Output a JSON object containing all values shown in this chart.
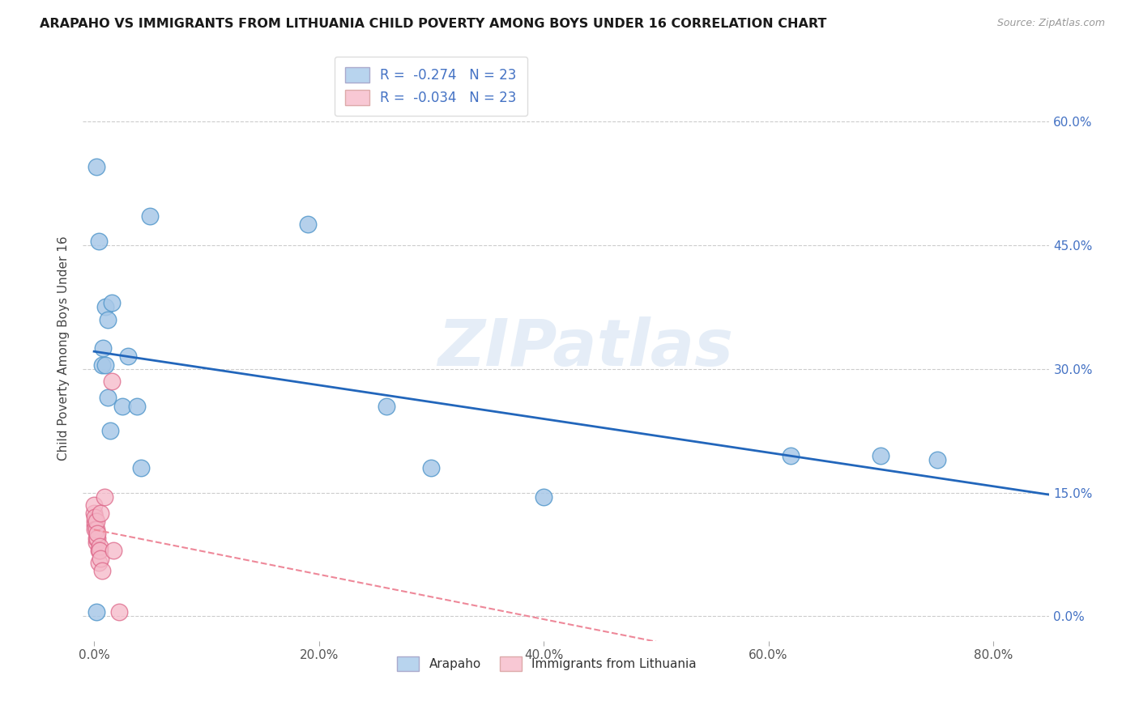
{
  "title": "ARAPAHO VS IMMIGRANTS FROM LITHUANIA CHILD POVERTY AMONG BOYS UNDER 16 CORRELATION CHART",
  "source": "Source: ZipAtlas.com",
  "ylabel": "Child Poverty Among Boys Under 16",
  "xlabel_ticks": [
    "0.0%",
    "20.0%",
    "40.0%",
    "60.0%",
    "80.0%"
  ],
  "xlabel_vals": [
    0.0,
    0.2,
    0.4,
    0.6,
    0.8
  ],
  "ylabel_ticks": [
    "0.0%",
    "15.0%",
    "30.0%",
    "45.0%",
    "60.0%"
  ],
  "ylabel_vals": [
    0.0,
    0.15,
    0.3,
    0.45,
    0.6
  ],
  "xlim": [
    -0.01,
    0.85
  ],
  "ylim": [
    -0.03,
    0.68
  ],
  "arapaho_color": "#a8c8e8",
  "arapaho_edge": "#5599cc",
  "arapaho_line_color": "#2266bb",
  "lithuania_color": "#f5b8c8",
  "lithuania_edge": "#dd6688",
  "lithuania_line_color": "#ee8899",
  "legend_arapaho_fill": "#b8d4ee",
  "legend_lithuania_fill": "#f8c8d4",
  "arapaho_x": [
    0.002,
    0.004,
    0.007,
    0.008,
    0.01,
    0.01,
    0.012,
    0.012,
    0.014,
    0.016,
    0.025,
    0.03,
    0.038,
    0.042,
    0.05,
    0.19,
    0.26,
    0.3,
    0.4,
    0.62,
    0.7,
    0.75,
    0.002
  ],
  "arapaho_y": [
    0.545,
    0.455,
    0.305,
    0.325,
    0.305,
    0.375,
    0.265,
    0.36,
    0.225,
    0.38,
    0.255,
    0.315,
    0.255,
    0.18,
    0.485,
    0.475,
    0.255,
    0.18,
    0.145,
    0.195,
    0.195,
    0.19,
    0.005
  ],
  "lithuania_x": [
    0.0,
    0.0,
    0.001,
    0.001,
    0.001,
    0.001,
    0.002,
    0.002,
    0.002,
    0.002,
    0.003,
    0.003,
    0.004,
    0.004,
    0.005,
    0.005,
    0.006,
    0.006,
    0.007,
    0.009,
    0.016,
    0.017,
    0.022
  ],
  "lithuania_y": [
    0.125,
    0.135,
    0.11,
    0.115,
    0.12,
    0.105,
    0.09,
    0.095,
    0.105,
    0.115,
    0.095,
    0.1,
    0.065,
    0.08,
    0.085,
    0.08,
    0.125,
    0.07,
    0.055,
    0.145,
    0.285,
    0.08,
    0.005
  ],
  "watermark": "ZIPatlas",
  "background_color": "#ffffff",
  "grid_color": "#cccccc",
  "legend_R_color": "#4472c4",
  "legend_N_color": "#4472c4",
  "legend_text_color": "#333333"
}
